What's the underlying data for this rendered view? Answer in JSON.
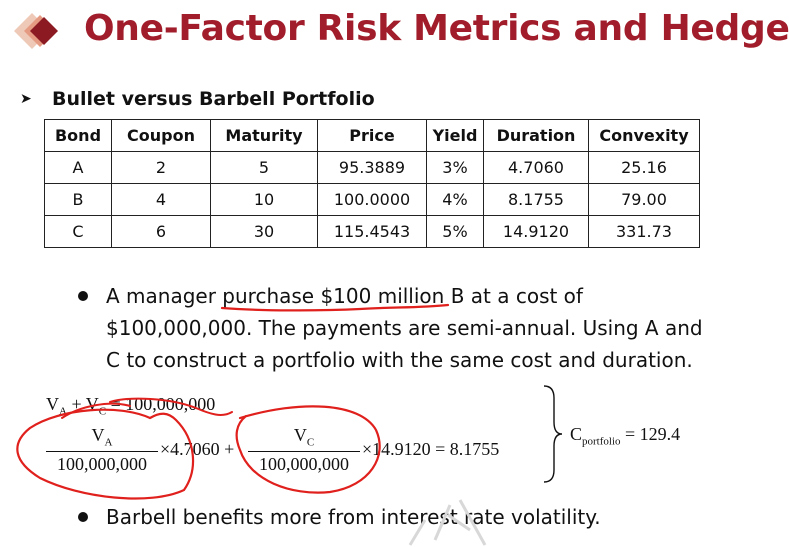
{
  "slide": {
    "title": "One-Factor Risk Metrics and Hedges",
    "subtitle": "Bullet versus Barbell Portfolio"
  },
  "table": {
    "headers": [
      "Bond",
      "Coupon",
      "Maturity",
      "Price",
      "Yield",
      "Duration",
      "Convexity"
    ],
    "rows": [
      [
        "A",
        "2",
        "5",
        "95.3889",
        "3%",
        "4.7060",
        "25.16"
      ],
      [
        "B",
        "4",
        "10",
        "100.0000",
        "4%",
        "8.1755",
        "79.00"
      ],
      [
        "C",
        "6",
        "30",
        "115.4543",
        "5%",
        "14.9120",
        "331.73"
      ]
    ]
  },
  "bullet1": {
    "line1": "A manager purchase $100 million B at a cost of",
    "line2": "$100,000,000. The payments are semi-annual. Using A and",
    "line3": "C to construct a portfolio with the same cost and duration."
  },
  "equations": {
    "eq1_va": "V",
    "eq1_va_sub": "A",
    "eq1_plus": " + V",
    "eq1_vc_sub": "C",
    "eq1_rhs": " = 100,000,000",
    "frac1_num": "V",
    "frac1_num_sub": "A",
    "frac1_den": "100,000,000",
    "mult1": "×4.7060 +",
    "frac2_num": "V",
    "frac2_num_sub": "C",
    "frac2_den": "100,000,000",
    "mult2": "×14.9120 = 8.1755",
    "result_c": "C",
    "result_sub": "portfolio",
    "result_val": " = 129.4"
  },
  "bullet2": {
    "text": "Barbell benefits more from interest rate volatility."
  },
  "colors": {
    "title": "#a11d2b",
    "logo_dark": "#8b1a22",
    "logo_light": "#e9b8a6",
    "ink": "#e0201c"
  }
}
